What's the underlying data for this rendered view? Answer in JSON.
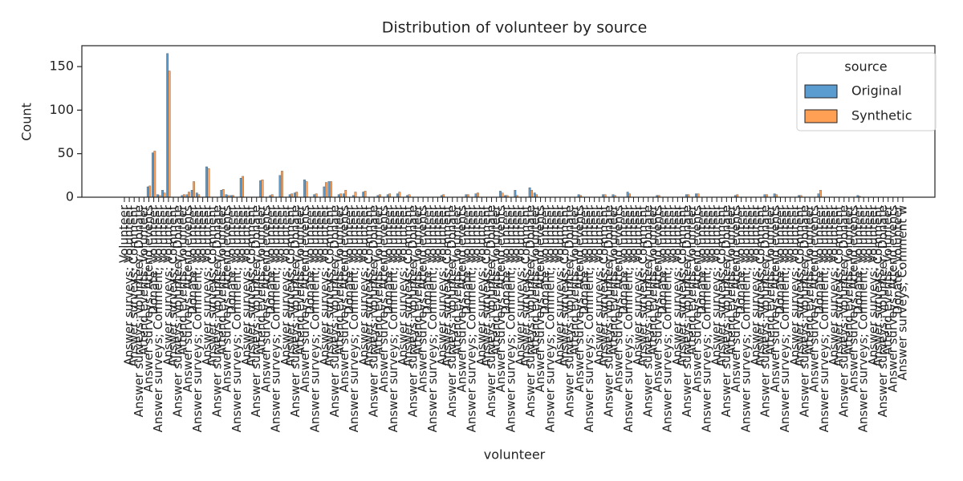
{
  "chart_data": {
    "type": "bar",
    "title": "Distribution of volunteer by source",
    "x_label": "volunteer",
    "y_label": "Count",
    "legend_title": "source",
    "legend_position": "upper right",
    "ylim": [
      0,
      174
    ],
    "yticks": [
      0,
      50,
      100,
      150
    ],
    "categories": [
      "Volunteer",
      "Answer surveys; Volunteer",
      "Answer surveys; Comment",
      "Answer surveys; Volunteer; Donate",
      "Attend events; Volunteer",
      "Answer surveys; Attend events",
      "Donate; Volunteer",
      "Answer surveys; Comment; Volunteer",
      "Volunteer",
      "Answer surveys; Volunteer",
      "Answer surveys; Comment",
      "Answer surveys; Volunteer; Donate",
      "Attend events; Volunteer",
      "Answer surveys; Attend events",
      "Donate; Volunteer",
      "Answer surveys; Comment; Volunteer",
      "Volunteer",
      "Answer surveys; Volunteer",
      "Answer surveys; Comment",
      "Answer surveys; Volunteer; Donate",
      "Attend events; Volunteer",
      "Answer surveys; Attend events",
      "Donate; Volunteer",
      "Answer surveys; Comment; Volunteer",
      "Volunteer",
      "Answer surveys; Volunteer",
      "Answer surveys; Comment",
      "Answer surveys; Volunteer; Donate",
      "Attend events; Volunteer",
      "Answer surveys; Attend events",
      "Donate; Volunteer",
      "Answer surveys; Comment; Volunteer",
      "Volunteer",
      "Answer surveys; Volunteer",
      "Answer surveys; Comment",
      "Answer surveys; Volunteer; Donate",
      "Attend events; Volunteer",
      "Answer surveys; Attend events",
      "Donate; Volunteer",
      "Answer surveys; Comment; Volunteer",
      "Volunteer",
      "Answer surveys; Volunteer",
      "Answer surveys; Comment",
      "Answer surveys; Volunteer; Donate",
      "Attend events; Volunteer",
      "Answer surveys; Attend events",
      "Donate; Volunteer",
      "Answer surveys; Comment; Volunteer",
      "Volunteer",
      "Answer surveys; Volunteer",
      "Answer surveys; Comment",
      "Answer surveys; Volunteer; Donate",
      "Attend events; Volunteer",
      "Answer surveys; Attend events",
      "Donate; Volunteer",
      "Answer surveys; Comment; Volunteer",
      "Volunteer",
      "Answer surveys; Volunteer",
      "Answer surveys; Comment",
      "Answer surveys; Volunteer; Donate",
      "Attend events; Volunteer",
      "Answer surveys; Attend events",
      "Donate; Volunteer",
      "Answer surveys; Comment; Volunteer",
      "Volunteer",
      "Answer surveys; Volunteer",
      "Answer surveys; Comment",
      "Answer surveys; Volunteer; Donate",
      "Attend events; Volunteer",
      "Answer surveys; Attend events",
      "Donate; Volunteer",
      "Answer surveys; Comment; Volunteer",
      "Volunteer",
      "Answer surveys; Volunteer",
      "Answer surveys; Comment",
      "Answer surveys; Volunteer; Donate",
      "Attend events; Volunteer",
      "Answer surveys; Attend events",
      "Donate; Volunteer",
      "Answer surveys; Comment; Volunteer",
      "Volunteer",
      "Answer surveys; Volunteer",
      "Answer surveys; Comment",
      "Answer surveys; Volunteer; Donate",
      "Attend events; Volunteer",
      "Answer surveys; Attend events",
      "Donate; Volunteer",
      "Answer surveys; Comment; Volunteer",
      "Volunteer",
      "Answer surveys; Volunteer",
      "Answer surveys; Comment",
      "Answer surveys; Volunteer; Donate",
      "Attend events; Volunteer",
      "Answer surveys; Attend events",
      "Donate; Volunteer",
      "Answer surveys; Comment; Volunteer",
      "Volunteer",
      "Answer surveys; Volunteer",
      "Answer surveys; Comment",
      "Answer surveys; Volunteer; Donate",
      "Attend events; Volunteer",
      "Answer surveys; Attend events",
      "Donate; Volunteer",
      "Answer surveys; Comment; Volunteer",
      "Volunteer",
      "Answer surveys; Volunteer",
      "Answer surveys; Comment",
      "Answer surveys; Volunteer; Donate",
      "Attend events; Volunteer",
      "Answer surveys; Attend events",
      "Donate; Volunteer",
      "Answer surveys; Comment; Volunteer",
      "Volunteer",
      "Answer surveys; Volunteer",
      "Answer surveys; Comment",
      "Answer surveys; Volunteer; Donate",
      "Attend events; Volunteer",
      "Answer surveys; Attend events",
      "Donate; Volunteer",
      "Answer surveys; Comment; Volunteer",
      "Volunteer",
      "Answer surveys; Volunteer",
      "Answer surveys; Comment",
      "Answer surveys; Volunteer; Donate",
      "Attend events; Volunteer",
      "Answer surveys; Attend events",
      "Donate; Volunteer",
      "Answer surveys; Comment; Volunteer",
      "Volunteer",
      "Answer surveys; Volunteer",
      "Answer surveys; Comment",
      "Answer surveys; Volunteer; Donate",
      "Attend events; Volunteer",
      "Answer surveys; Attend events",
      "Donate; Volunteer",
      "Answer surveys; Comment; Volunteer",
      "Volunteer",
      "Answer surveys; Volunteer",
      "Answer surveys; Comment",
      "Answer surveys; Volunteer; Donate",
      "Attend events; Volunteer",
      "Answer surveys; Attend events",
      "Donate; Volunteer",
      "Answer surveys; Comment; Volunteer",
      "Volunteer",
      "Answer surveys; Volunteer",
      "Answer surveys; Comment",
      "Answer surveys; Volunteer; Donate",
      "Attend events; Volunteer",
      "Answer surveys; Attend events",
      "Donate; Volunteer",
      "Answer surveys; Comment; Volunteer",
      "Volunteer",
      "Answer surveys; Volunteer",
      "Answer surveys; Comment",
      "Answer surveys; Volunteer; Donate",
      "Attend events; Volunteer",
      "Answer surveys; Attend events",
      "Donate; Volunteer",
      "Answer surveys; Comment w"
    ],
    "series": [
      {
        "name": "Original",
        "color": "#5a9bd0",
        "values": [
          0,
          0,
          0,
          0,
          0,
          12,
          51,
          3,
          8,
          165,
          0,
          0,
          2,
          3,
          8,
          5,
          0,
          35,
          0,
          0,
          8,
          3,
          2,
          0,
          22,
          0,
          0,
          0,
          19,
          0,
          2,
          0,
          25,
          0,
          3,
          5,
          0,
          20,
          0,
          3,
          0,
          12,
          18,
          0,
          3,
          4,
          0,
          2,
          0,
          6,
          0,
          0,
          2,
          0,
          3,
          0,
          4,
          0,
          2,
          0,
          0,
          0,
          0,
          0,
          0,
          2,
          0,
          0,
          0,
          0,
          3,
          0,
          4,
          0,
          0,
          0,
          0,
          7,
          2,
          0,
          8,
          0,
          0,
          11,
          5,
          0,
          0,
          0,
          0,
          0,
          0,
          0,
          0,
          3,
          0,
          0,
          0,
          0,
          3,
          0,
          3,
          0,
          0,
          6,
          0,
          0,
          0,
          0,
          0,
          2,
          0,
          0,
          0,
          0,
          0,
          3,
          0,
          4,
          0,
          0,
          0,
          0,
          0,
          0,
          0,
          2,
          0,
          0,
          0,
          0,
          0,
          3,
          0,
          4,
          0,
          0,
          0,
          0,
          2,
          0,
          0,
          0,
          4,
          0,
          0,
          0,
          0,
          0,
          0,
          0,
          2,
          0,
          0,
          0,
          0,
          0,
          0,
          0,
          0,
          0
        ]
      },
      {
        "name": "Synthetic",
        "color": "#ffa055",
        "values": [
          0,
          0,
          0,
          0,
          0,
          13,
          53,
          2,
          5,
          145,
          0,
          0,
          3,
          6,
          18,
          3,
          0,
          33,
          0,
          0,
          9,
          2,
          2,
          0,
          24,
          0,
          0,
          0,
          20,
          0,
          3,
          0,
          30,
          0,
          4,
          6,
          0,
          18,
          0,
          4,
          0,
          17,
          18,
          0,
          4,
          8,
          0,
          6,
          0,
          7,
          0,
          0,
          3,
          0,
          4,
          0,
          6,
          0,
          3,
          0,
          0,
          0,
          0,
          0,
          0,
          3,
          0,
          0,
          0,
          0,
          3,
          0,
          5,
          0,
          0,
          0,
          0,
          5,
          2,
          0,
          2,
          0,
          0,
          8,
          3,
          0,
          0,
          0,
          0,
          0,
          0,
          0,
          0,
          2,
          0,
          0,
          0,
          0,
          3,
          0,
          2,
          0,
          0,
          4,
          0,
          0,
          0,
          0,
          0,
          2,
          0,
          0,
          0,
          0,
          0,
          3,
          0,
          4,
          0,
          0,
          0,
          0,
          0,
          0,
          0,
          3,
          0,
          0,
          0,
          0,
          0,
          3,
          0,
          3,
          0,
          0,
          0,
          0,
          2,
          0,
          0,
          0,
          8,
          0,
          0,
          0,
          0,
          0,
          0,
          0,
          1,
          0,
          0,
          0,
          0,
          0,
          0,
          0,
          0,
          0
        ]
      }
    ]
  }
}
